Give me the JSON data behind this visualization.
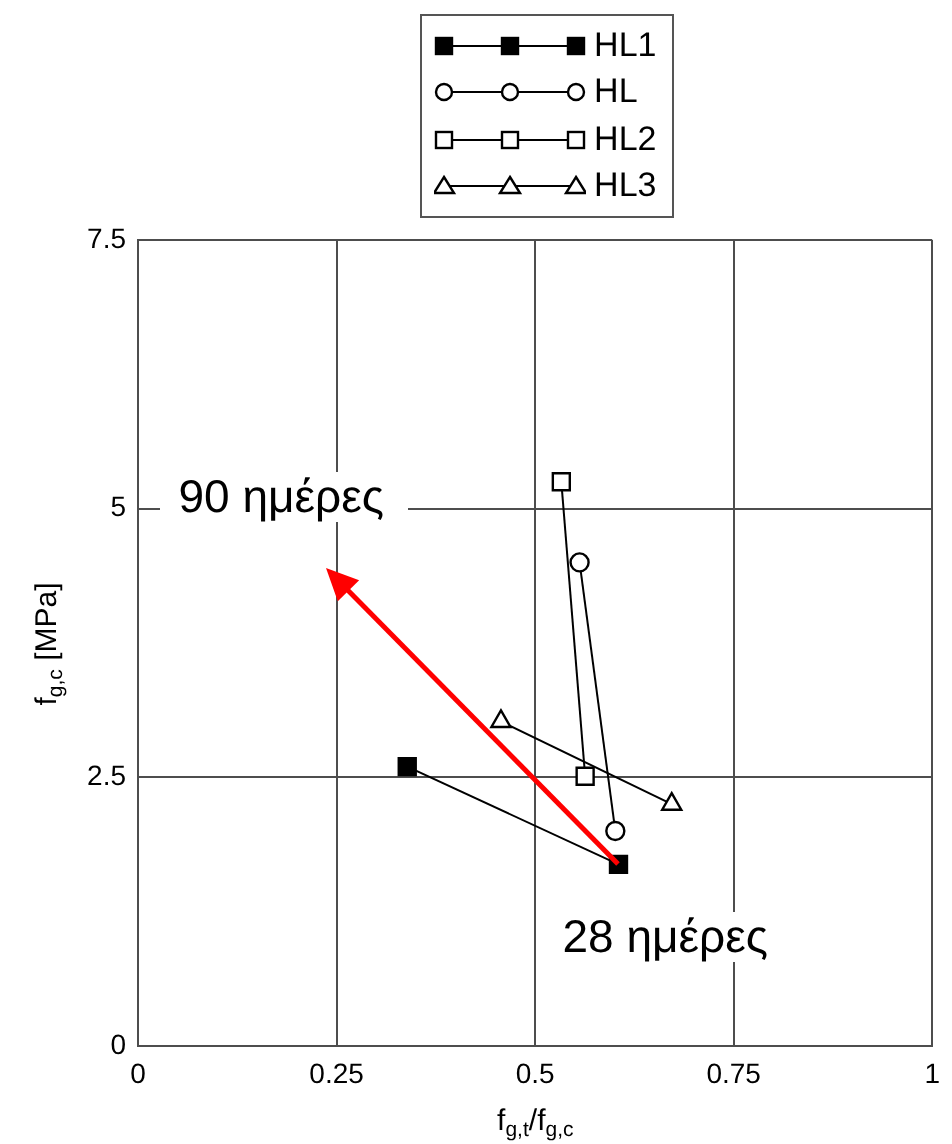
{
  "chart_data": {
    "type": "line",
    "xlabel": "f$_{g,t}$/f$_{g,c}$",
    "ylabel": "f$_{g,c}$ [MPa]",
    "series": [
      {
        "name": "HL1",
        "color": "#000000",
        "marker": "square",
        "x": [
          0.605,
          0.339
        ],
        "values": [
          1.69,
          2.6
        ]
      },
      {
        "name": "HL",
        "color": "#000000",
        "marker": "circle",
        "x": [
          0.601,
          0.556
        ],
        "values": [
          2.0,
          4.5
        ]
      },
      {
        "name": "HL2",
        "color": "#000000",
        "marker": "square",
        "x": [
          0.563,
          0.533
        ],
        "values": [
          2.51,
          5.25
        ]
      },
      {
        "name": "HL3",
        "color": "#000000",
        "marker": "triangle",
        "x": [
          0.672,
          0.457
        ],
        "values": [
          2.25,
          3.02
        ]
      }
    ],
    "xlim": [
      0,
      1
    ],
    "xticks": [
      0,
      0.25,
      0.5,
      0.75,
      1
    ],
    "ylim": [
      0,
      7.5
    ],
    "yticks": [
      0,
      2.5,
      5,
      7.5
    ],
    "grid": true,
    "legend": "top",
    "annotations": [
      {
        "text": "28 ημέρες",
        "x": 0.605,
        "y": 1.69
      },
      "90 ημέρες"
    ]
  }
}
